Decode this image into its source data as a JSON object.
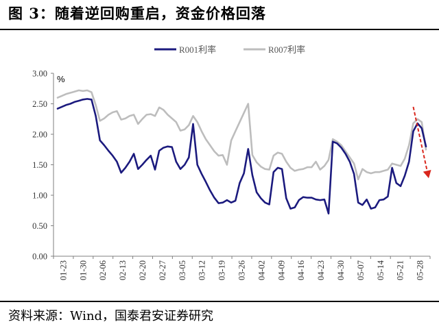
{
  "header": {
    "title": "图 3：随着逆回购重启，资金价格回落"
  },
  "footer": {
    "source": "资料来源：Wind，国泰君安证券研究"
  },
  "chart_data": {
    "type": "line",
    "unit_label": "%",
    "ylim": [
      0,
      3
    ],
    "yticks": [
      "0.00",
      "0.50",
      "1.00",
      "1.50",
      "2.00",
      "2.50",
      "3.00"
    ],
    "grid": false,
    "legend_position": "top",
    "xlabels": [
      "01-23",
      "01-30",
      "02-06",
      "02-13",
      "02-20",
      "02-27",
      "03-05",
      "03-12",
      "03-19",
      "03-26",
      "04-02",
      "04-09",
      "04-16",
      "04-23",
      "04-30",
      "05-07",
      "05-14",
      "05-21",
      "05-28"
    ],
    "colors": {
      "R001": "#1b1a7e",
      "R007": "#bdbdbd",
      "arrow": "#d9261c"
    },
    "series": [
      {
        "name": "R001利率",
        "color": "#1b1a7e",
        "values": [
          2.42,
          2.45,
          2.48,
          2.5,
          2.53,
          2.55,
          2.57,
          2.58,
          2.57,
          2.3,
          1.9,
          1.82,
          1.73,
          1.65,
          1.55,
          1.37,
          1.45,
          1.55,
          1.68,
          1.43,
          1.5,
          1.58,
          1.65,
          1.42,
          1.73,
          1.78,
          1.8,
          1.79,
          1.55,
          1.43,
          1.5,
          1.62,
          2.17,
          1.5,
          1.35,
          1.22,
          1.08,
          0.96,
          0.87,
          0.88,
          0.92,
          0.88,
          0.91,
          1.2,
          1.36,
          1.76,
          1.33,
          1.05,
          0.95,
          0.88,
          0.85,
          1.38,
          1.45,
          1.43,
          0.95,
          0.78,
          0.8,
          0.92,
          0.97,
          0.96,
          0.96,
          0.93,
          0.92,
          0.93,
          0.7,
          1.88,
          1.85,
          1.78,
          1.68,
          1.55,
          1.35,
          0.88,
          0.84,
          0.93,
          0.78,
          0.8,
          0.92,
          0.93,
          0.98,
          1.45,
          1.2,
          1.15,
          1.32,
          1.55,
          2.05,
          2.18,
          2.1,
          1.8
        ]
      },
      {
        "name": "R007利率",
        "color": "#bdbdbd",
        "values": [
          2.6,
          2.63,
          2.66,
          2.68,
          2.7,
          2.72,
          2.71,
          2.72,
          2.69,
          2.48,
          2.22,
          2.26,
          2.32,
          2.36,
          2.38,
          2.24,
          2.26,
          2.3,
          2.32,
          2.17,
          2.25,
          2.32,
          2.33,
          2.3,
          2.44,
          2.4,
          2.32,
          2.26,
          2.2,
          2.06,
          2.08,
          2.15,
          2.3,
          2.2,
          2.05,
          1.92,
          1.82,
          1.72,
          1.65,
          1.66,
          1.5,
          1.9,
          2.05,
          2.2,
          2.35,
          2.5,
          1.66,
          1.54,
          1.47,
          1.43,
          1.42,
          1.65,
          1.7,
          1.68,
          1.55,
          1.45,
          1.4,
          1.42,
          1.43,
          1.46,
          1.46,
          1.55,
          1.42,
          1.48,
          1.58,
          1.92,
          1.88,
          1.82,
          1.72,
          1.62,
          1.52,
          1.26,
          1.43,
          1.38,
          1.36,
          1.38,
          1.38,
          1.4,
          1.42,
          1.52,
          1.5,
          1.48,
          1.6,
          1.82,
          2.18,
          2.25,
          2.2,
          1.75
        ]
      }
    ],
    "annotations": [
      {
        "type": "arrow",
        "description": "trend arrow",
        "from_index": 84,
        "to_index": 87,
        "from_value": 2.45,
        "to_value": 1.28
      }
    ]
  }
}
